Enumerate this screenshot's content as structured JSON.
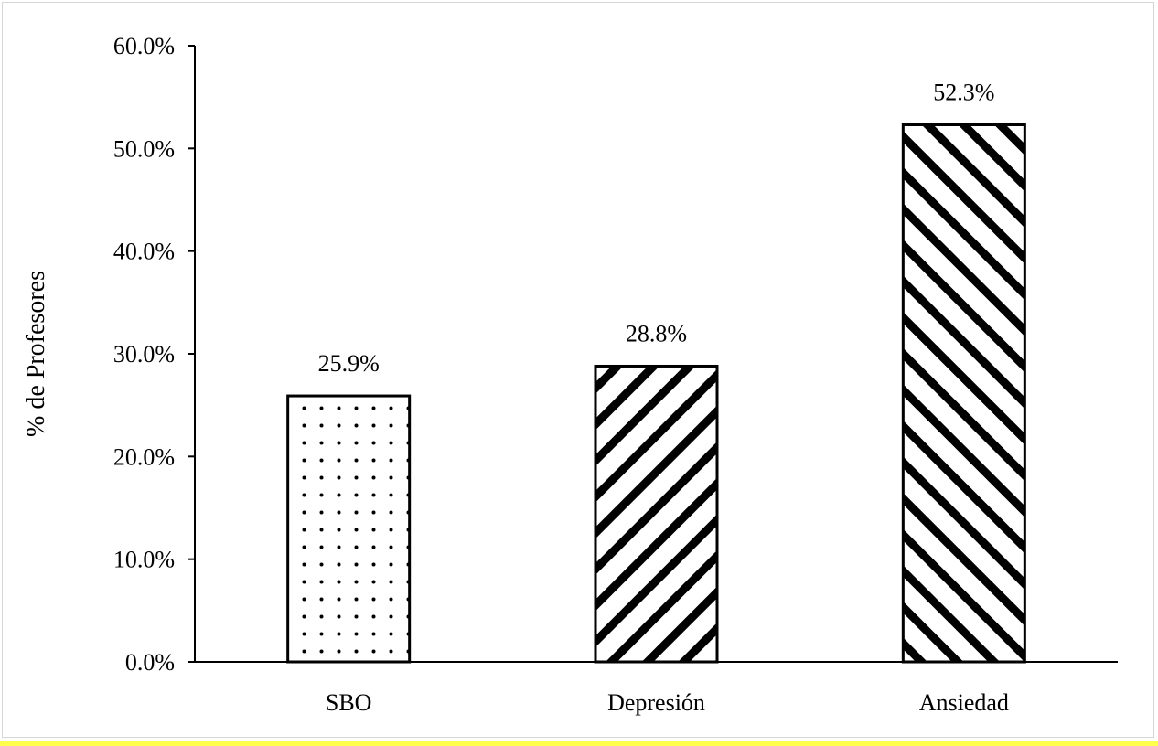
{
  "chart_data": {
    "type": "bar",
    "title": "",
    "xlabel": "",
    "ylabel": "% de Profesores",
    "ylim": [
      0,
      60
    ],
    "yticks": [
      0,
      10,
      20,
      30,
      40,
      50,
      60
    ],
    "ytick_labels": [
      "0.0%",
      "10.0%",
      "20.0%",
      "30.0%",
      "40.0%",
      "50.0%",
      "60.0%"
    ],
    "categories": [
      "SBO",
      "Depresión",
      "Ansiedad"
    ],
    "values": [
      25.9,
      28.8,
      52.3
    ],
    "data_labels": [
      "25.9%",
      "28.8%",
      "52.3%"
    ],
    "patterns": [
      "dots",
      "diagonal-down",
      "diagonal-up"
    ],
    "grid": false,
    "legend": "none"
  },
  "colors": {
    "axis": "#000000",
    "bar_fill": "#ffffff",
    "bar_stroke": "#000000",
    "frame_border": "#d6d6d6",
    "bottom_accent": "#ffff4d"
  }
}
